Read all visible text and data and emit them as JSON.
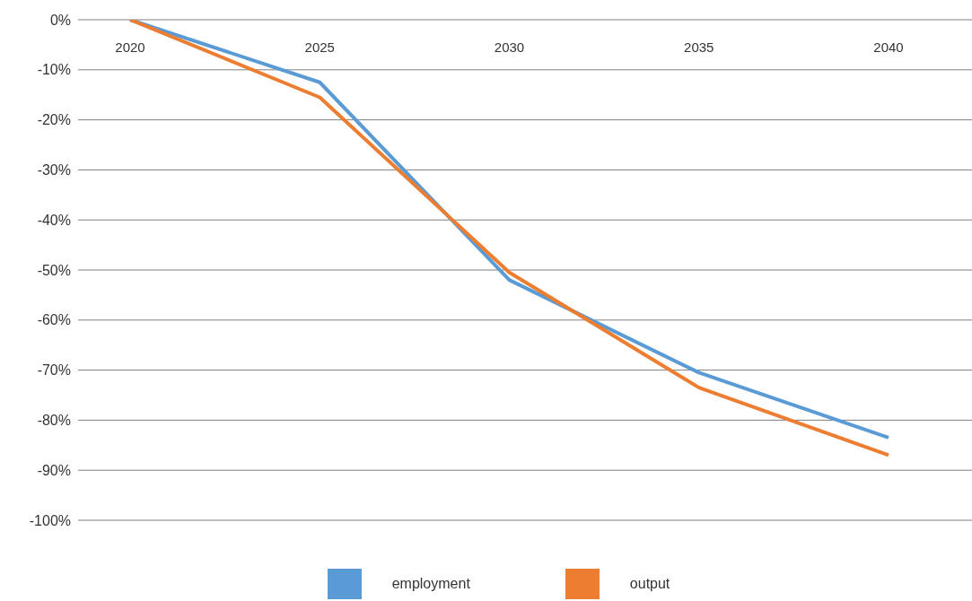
{
  "chart_data": {
    "type": "line",
    "categories": [
      "2020",
      "2025",
      "2030",
      "2035",
      "2040"
    ],
    "series": [
      {
        "name": "employment",
        "color": "#5b9bd5",
        "values": [
          0,
          -12.5,
          -52,
          -70.5,
          -83.5
        ]
      },
      {
        "name": "output",
        "color": "#ed7d31",
        "values": [
          0,
          -15.5,
          -50.5,
          -73.5,
          -87
        ]
      }
    ],
    "ylim": [
      -100,
      0
    ],
    "yticks": [
      {
        "value": 0,
        "label": "0%"
      },
      {
        "value": -10,
        "label": "-10%"
      },
      {
        "value": -20,
        "label": "-20%"
      },
      {
        "value": -30,
        "label": "-30%"
      },
      {
        "value": -40,
        "label": "-40%"
      },
      {
        "value": -50,
        "label": "-50%"
      },
      {
        "value": -60,
        "label": "-60%"
      },
      {
        "value": -70,
        "label": "-70%"
      },
      {
        "value": -80,
        "label": "-80%"
      },
      {
        "value": -90,
        "label": "-90%"
      },
      {
        "value": -100,
        "label": "-100%"
      }
    ],
    "grid": "y",
    "legend": "bottom",
    "marker": "none",
    "line_style": "solid"
  }
}
